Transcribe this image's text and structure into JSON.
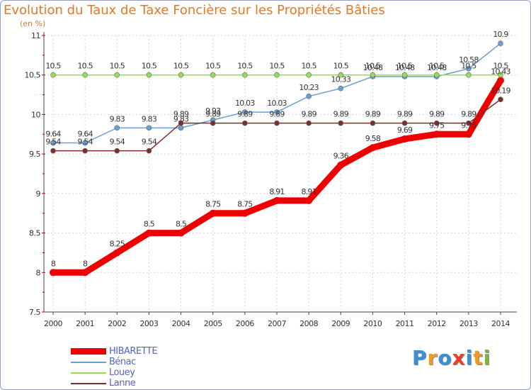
{
  "chart_data": {
    "type": "line",
    "title": "Evolution du Taux de Taxe Foncière sur les Propriétés Bâties",
    "ylabel": "(en %)",
    "xlabel": "",
    "ylim": [
      7.5,
      11
    ],
    "yticks": [
      "7.5",
      "8",
      "8.5",
      "9",
      "9.5",
      "10",
      "10.5",
      "11"
    ],
    "x": [
      "2000",
      "2001",
      "2002",
      "2003",
      "2004",
      "2005",
      "2006",
      "2007",
      "2008",
      "2009",
      "2010",
      "2011",
      "2012",
      "2013",
      "2014"
    ],
    "series": [
      {
        "name": "HIBARETTE",
        "color": "#ee0000",
        "width": 9,
        "values": [
          8,
          8,
          8.25,
          8.5,
          8.5,
          8.75,
          8.75,
          8.91,
          8.91,
          9.36,
          9.58,
          9.69,
          9.75,
          9.75,
          10.43
        ],
        "labels": [
          "8",
          "8",
          "8.25",
          "8.5",
          "8.5",
          "8.75",
          "8.75",
          "8.91",
          "8.91",
          "9.36",
          "9.58",
          "9.69",
          "9.75",
          "9.75",
          "10.43"
        ]
      },
      {
        "name": "Bénac",
        "color": "#6a9fd4",
        "width": 1.5,
        "values": [
          9.64,
          9.64,
          9.83,
          9.83,
          9.83,
          9.93,
          10.03,
          10.03,
          10.23,
          10.33,
          10.48,
          10.48,
          10.48,
          10.58,
          10.9
        ],
        "labels": [
          "9.64",
          "9.64",
          "9.83",
          "9.83",
          "9.83",
          "9.93",
          "10.03",
          "10.03",
          "10.23",
          "10.33",
          "10.48",
          "10.48",
          "10.48",
          "10.58",
          "10.9"
        ]
      },
      {
        "name": "Louey",
        "color": "#99dd55",
        "width": 1.5,
        "values": [
          10.5,
          10.5,
          10.5,
          10.5,
          10.5,
          10.5,
          10.5,
          10.5,
          10.5,
          10.5,
          10.5,
          10.5,
          10.5,
          10.5,
          10.5
        ],
        "labels": [
          "10.5",
          "10.5",
          "10.5",
          "10.5",
          "10.5",
          "10.5",
          "10.5",
          "10.5",
          "10.5",
          "10.5",
          "10.5",
          "10.5",
          "10.5",
          "10.5",
          "10.5"
        ]
      },
      {
        "name": "Lanne",
        "color": "#7a2e2e",
        "width": 1.5,
        "values": [
          9.54,
          9.54,
          9.54,
          9.54,
          9.89,
          9.89,
          9.89,
          9.89,
          9.89,
          9.89,
          9.89,
          9.89,
          9.89,
          9.89,
          10.19
        ],
        "labels": [
          "9.54",
          "9.54",
          "9.54",
          "9.54",
          "9.89",
          "9.89",
          "9.89",
          "9.89",
          "9.89",
          "9.89",
          "9.89",
          "9.89",
          "9.89",
          "9.89",
          "10.19"
        ]
      }
    ]
  },
  "legend": [
    {
      "label": "HIBARETTE"
    },
    {
      "label": "Bénac"
    },
    {
      "label": "Louey"
    },
    {
      "label": "Lanne"
    }
  ],
  "logo": {
    "text": "Proxiti"
  },
  "colors": {
    "title": "#e07a2a",
    "axis": "#444444",
    "grid": "#cccccc",
    "label": "#333333"
  }
}
